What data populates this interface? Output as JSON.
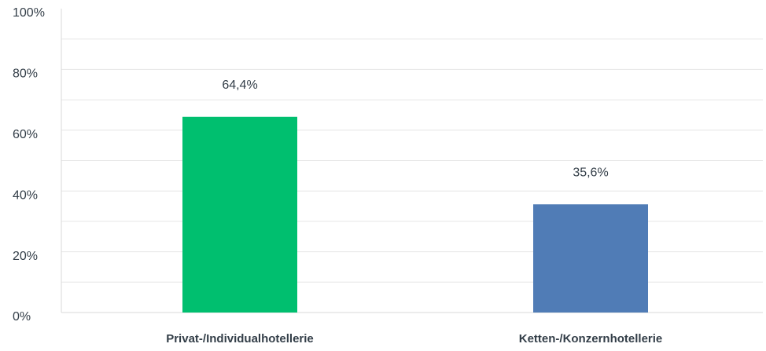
{
  "chart_data": {
    "type": "bar",
    "categories": [
      "Privat-/Individualhotellerie",
      "Ketten-/Konzernhotellerie"
    ],
    "values": [
      64.4,
      35.6
    ],
    "value_labels": [
      "64,4%",
      "35,6%"
    ],
    "colors": [
      "#00bf6f",
      "#507cb6"
    ],
    "ylim": [
      0,
      100
    ],
    "yticks": [
      {
        "value": 0,
        "label": "0%"
      },
      {
        "value": 20,
        "label": "20%"
      },
      {
        "value": 40,
        "label": "40%"
      },
      {
        "value": 60,
        "label": "60%"
      },
      {
        "value": 80,
        "label": "80%"
      },
      {
        "value": 100,
        "label": "100%"
      }
    ],
    "minor_yticks": [
      10,
      30,
      50,
      70,
      90
    ],
    "grid": true
  }
}
